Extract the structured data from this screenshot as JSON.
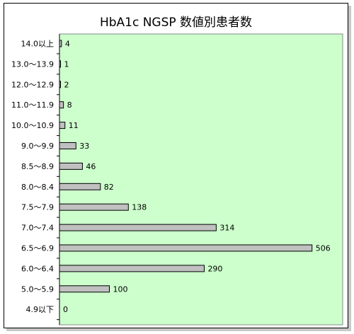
{
  "chart_data": {
    "type": "bar",
    "orientation": "horizontal",
    "title": "HbA1c NGSP 数値別患者数",
    "categories": [
      "14.0以上",
      "13.0～13.9",
      "12.0～12.9",
      "11.0～11.9",
      "10.0～10.9",
      "9.0～9.9",
      "8.5～8.9",
      "8.0～8.4",
      "7.5～7.9",
      "7.0～7.4",
      "6.5～6.9",
      "6.0～6.4",
      "5.0～5.9",
      "4.9以下"
    ],
    "values": [
      4,
      1,
      2,
      8,
      11,
      33,
      46,
      82,
      138,
      314,
      506,
      290,
      100,
      0
    ],
    "data_labels": [
      "4",
      "1",
      "2",
      "8",
      "11",
      "33",
      "46",
      "82",
      "138",
      "314",
      "506",
      "290",
      "100",
      "0"
    ],
    "xlim": [
      0,
      600
    ],
    "plot_background": "#ccffcc",
    "bar_color": "#c0c0c0",
    "bar_border": "#000000",
    "grid": false,
    "legend": false
  }
}
